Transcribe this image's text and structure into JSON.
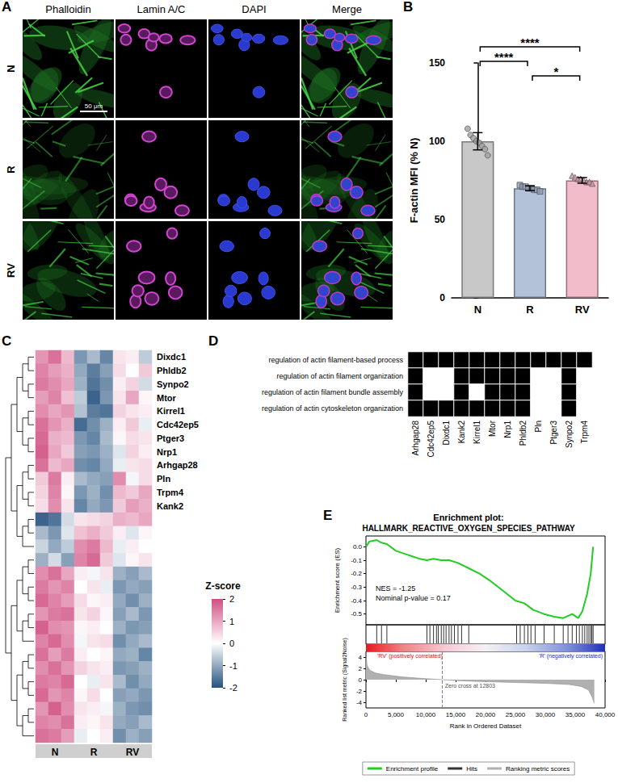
{
  "image_panel": {
    "panel": "A",
    "columns": [
      "Phalloidin",
      "Lamin A/C",
      "DAPI",
      "Merge"
    ],
    "rows": [
      "N",
      "R",
      "RV"
    ],
    "scale_bar": "50 μm"
  },
  "chart_data": [
    {
      "panel": "B",
      "type": "bar",
      "y_label": "F-actin MFI (% N)",
      "categories": [
        "N",
        "R",
        "RV"
      ],
      "values": [
        100,
        70,
        75
      ],
      "errors": [
        5.5,
        1.5,
        1.8
      ],
      "points": [
        [
          108,
          104,
          102,
          100,
          99,
          97,
          95,
          91
        ],
        [
          72,
          71,
          71,
          70,
          70,
          69,
          69,
          68
        ],
        [
          78,
          77,
          76,
          76,
          75,
          74,
          74,
          73
        ]
      ],
      "colors": [
        "#c8c8c8",
        "#b3c2d8",
        "#f3bccb"
      ],
      "ylim": [
        0,
        150
      ],
      "yticks": [
        0,
        50,
        100,
        150
      ],
      "significance": [
        {
          "from": "N",
          "to": "RV",
          "label": "****"
        },
        {
          "from": "N",
          "to": "R",
          "label": "****"
        },
        {
          "from": "R",
          "to": "RV",
          "label": "*"
        }
      ]
    },
    {
      "panel": "C",
      "type": "heatmap",
      "categories": [
        null,
        "N",
        null,
        null,
        "R",
        null,
        null,
        "RV",
        null
      ],
      "rows": [
        "Dixdc1",
        "Phldb2",
        "Synpo2",
        "Mtor",
        "Kirrel1",
        "Cdc42ep5",
        "Ptger3",
        "Nrp1",
        "Arhgap28",
        "Pln",
        "Trpm4",
        "Kank2",
        null,
        null,
        null,
        null,
        null,
        null,
        null,
        null,
        null,
        null,
        null,
        null,
        null,
        null,
        null,
        null,
        null
      ],
      "cells": [
        [
          1.2,
          1.6,
          0.8,
          -1.2,
          -0.8,
          -1.4,
          0.3,
          0.2,
          -0.6
        ],
        [
          1.4,
          1.1,
          0.9,
          -1.0,
          -1.5,
          -1.1,
          0.4,
          0.0,
          0.6
        ],
        [
          1.5,
          1.3,
          1.0,
          -0.9,
          -1.6,
          -1.3,
          0.2,
          0.5,
          -0.4
        ],
        [
          1.1,
          1.4,
          0.7,
          -0.6,
          -1.8,
          -1.2,
          0.3,
          1.0,
          0.1
        ],
        [
          1.3,
          1.0,
          1.2,
          -0.7,
          -1.5,
          -1.6,
          0.5,
          0.3,
          0.2
        ],
        [
          1.6,
          1.2,
          0.9,
          -1.7,
          -1.3,
          -0.9,
          0.2,
          0.6,
          -0.2
        ],
        [
          1.7,
          0.9,
          0.8,
          -1.2,
          -1.4,
          -0.8,
          0.1,
          0.4,
          0.3
        ],
        [
          1.8,
          1.0,
          0.6,
          -1.1,
          -1.2,
          -0.9,
          -0.3,
          0.5,
          0.2
        ],
        [
          1.6,
          0.8,
          1.0,
          -1.3,
          -1.4,
          -1.0,
          -0.2,
          0.3,
          0.4
        ],
        [
          0.6,
          1.5,
          0.2,
          -0.8,
          -1.0,
          -1.1,
          1.3,
          -0.1,
          0.4
        ],
        [
          0.5,
          1.4,
          0.1,
          -1.2,
          -0.9,
          -1.3,
          0.8,
          0.6,
          1.0
        ],
        [
          0.4,
          1.3,
          0.3,
          -1.4,
          -1.0,
          -1.2,
          0.6,
          1.1,
          0.9
        ],
        [
          -1.8,
          -1.6,
          -0.4,
          0.3,
          0.4,
          0.5,
          0.9,
          0.8,
          1.0
        ],
        [
          -0.8,
          -1.2,
          -0.3,
          0.7,
          0.9,
          0.6,
          0.2,
          -0.3,
          0.1
        ],
        [
          -0.5,
          -1.0,
          -0.6,
          1.3,
          1.5,
          0.8,
          -0.2,
          0.2,
          0.0
        ],
        [
          -0.9,
          -0.4,
          -1.1,
          1.4,
          1.7,
          0.6,
          -0.3,
          0.1,
          0.3
        ],
        [
          1.3,
          1.6,
          1.0,
          0.2,
          -0.1,
          0.3,
          -0.9,
          -1.1,
          -0.8
        ],
        [
          1.5,
          1.2,
          1.4,
          0.0,
          0.3,
          -0.2,
          -1.2,
          -1.0,
          -1.1
        ],
        [
          1.7,
          1.4,
          1.1,
          0.4,
          0.1,
          0.2,
          -1.0,
          -1.3,
          -0.9
        ],
        [
          1.2,
          1.5,
          1.6,
          0.3,
          0.5,
          0.1,
          -1.1,
          -0.8,
          -1.2
        ],
        [
          1.8,
          1.3,
          1.2,
          0.1,
          0.2,
          0.0,
          -0.9,
          -1.2,
          -1.1
        ],
        [
          1.4,
          1.7,
          1.3,
          -0.1,
          0.3,
          0.4,
          -1.3,
          -1.0,
          -0.8
        ],
        [
          1.6,
          1.1,
          1.5,
          0.2,
          0.0,
          0.1,
          -1.0,
          -0.9,
          -1.4
        ],
        [
          1.3,
          1.6,
          1.2,
          0.5,
          0.3,
          0.2,
          -1.2,
          -1.1,
          -0.9
        ],
        [
          1.5,
          1.4,
          1.7,
          0.0,
          -0.2,
          0.3,
          -0.8,
          -1.3,
          -1.0
        ],
        [
          1.7,
          1.2,
          1.4,
          0.1,
          0.4,
          0.0,
          -1.1,
          -1.0,
          -1.2
        ],
        [
          1.2,
          1.8,
          1.3,
          0.3,
          0.2,
          -0.1,
          -0.9,
          -1.2,
          -1.3
        ],
        [
          1.4,
          1.3,
          1.6,
          0.2,
          0.1,
          0.3,
          -1.0,
          -1.1,
          -0.8
        ],
        [
          1.6,
          1.5,
          1.1,
          -0.2,
          0.0,
          0.2,
          -1.3,
          -0.9,
          -1.1
        ]
      ],
      "colorbar": {
        "title": "Z-score",
        "range": [
          -2,
          2
        ],
        "ticks": [
          -2,
          -1,
          0,
          1,
          2
        ]
      }
    },
    {
      "panel": "D",
      "type": "heatmap",
      "categories": [
        "Arhgap28",
        "Cdc42ep5",
        "Dixdc1",
        "Kank2",
        "Kirrel1",
        "Mtor",
        "Nrp1",
        "Phldb2",
        "Pln",
        "Ptger3",
        "Synpo2",
        "Trpm4"
      ],
      "rows": [
        "regulation of actin filament-based process",
        "regulation of actin filament organization",
        "regulation of actin filament bundle assembly",
        "regulation of actin cytoskeleton organization"
      ],
      "cells": [
        [
          1,
          1,
          1,
          1,
          1,
          1,
          1,
          1,
          1,
          1,
          1,
          1
        ],
        [
          1,
          0,
          0,
          1,
          1,
          1,
          1,
          1,
          0,
          0,
          1,
          0
        ],
        [
          1,
          0,
          0,
          1,
          0,
          1,
          1,
          1,
          0,
          0,
          1,
          0
        ],
        [
          1,
          1,
          1,
          1,
          1,
          1,
          1,
          1,
          0,
          0,
          1,
          0
        ]
      ]
    },
    {
      "panel": "E",
      "type": "line",
      "title": "Enrichment plot:",
      "subtitle": "HALLMARK_REACTIVE_OXYGEN_SPECIES_PATHWAY",
      "x_label": "Rank in Ordered Dataset",
      "y_label": "Enrichment score (ES)",
      "y2_label": "Ranked list metric (Signal2Noise)",
      "xlim": [
        0,
        40000
      ],
      "xticks": [
        0,
        {
          "value": 5000,
          "label": "5,000"
        },
        {
          "value": 10000,
          "label": "10,000"
        },
        {
          "value": 15000,
          "label": "15,000"
        },
        {
          "value": 20000,
          "label": "20,000"
        },
        {
          "value": 25000,
          "label": "25,000"
        },
        {
          "value": 30000,
          "label": "30,000"
        },
        {
          "value": 35000,
          "label": "35,000"
        },
        {
          "value": 40000,
          "label": "40,000"
        }
      ],
      "ylim": [
        -0.58,
        0.08
      ],
      "yticks": [
        -0.5,
        -0.4,
        -0.3,
        -0.2,
        -0.1,
        {
          "value": 0,
          "label": "0.0"
        }
      ],
      "y2lim": [
        -5,
        5
      ],
      "y2ticks": [
        -4,
        -2,
        0,
        2,
        4
      ],
      "series": [
        {
          "name": "Enrichment profile",
          "type": "line",
          "color": "#22cc22",
          "x": [
            0,
            600,
            1800,
            2600,
            3500,
            5000,
            7000,
            9000,
            10200,
            11300,
            12600,
            13900,
            15400,
            17200,
            19000,
            21000,
            23000,
            25000,
            26500,
            28000,
            29800,
            31500,
            33000,
            34500,
            35500,
            36200,
            37000,
            37600,
            38000
          ],
          "values": [
            0,
            0.04,
            0.05,
            0.03,
            0.02,
            -0.03,
            -0.06,
            -0.09,
            -0.1,
            -0.09,
            -0.1,
            -0.1,
            -0.12,
            -0.16,
            -0.2,
            -0.26,
            -0.33,
            -0.4,
            -0.42,
            -0.47,
            -0.5,
            -0.52,
            -0.53,
            -0.5,
            -0.53,
            -0.48,
            -0.35,
            -0.2,
            0
          ]
        },
        {
          "name": "Hits",
          "type": "scatter",
          "color": "#000000",
          "x": [
            1800,
            2600,
            3500,
            10200,
            10700,
            11300,
            11800,
            12100,
            12600,
            13000,
            13400,
            13900,
            14300,
            14800,
            15400,
            16000,
            17200,
            25200,
            25800,
            26500,
            27100,
            27600,
            28300,
            29800,
            31500,
            33000,
            33800,
            34500,
            35200,
            35700,
            36200,
            36600,
            37000,
            37300,
            37600,
            37800,
            38000
          ]
        },
        {
          "name": "Ranking metric scores",
          "type": "area",
          "axis": "y2",
          "color": "#b0b0b0",
          "x": [
            0,
            200,
            600,
            1500,
            3000,
            6000,
            9000,
            12803,
            16000,
            20000,
            25000,
            30000,
            34000,
            36000,
            37200,
            37800,
            38200
          ],
          "values": [
            4.2,
            2.5,
            1.7,
            1.2,
            0.9,
            0.5,
            0.25,
            0,
            -0.2,
            -0.35,
            -0.5,
            -0.65,
            -0.85,
            -1.2,
            -1.8,
            -3,
            -4.2
          ]
        }
      ],
      "annotations": [
        "NES = -1.25",
        "Nominal p-value = 0.17"
      ],
      "zero_cross": {
        "x": 12803,
        "label": "Zero cross at 12803"
      },
      "phenotypes": [
        "'RV' (positively correlated)",
        "'R' (negatively correlated)"
      ],
      "legend": "bottom"
    }
  ]
}
